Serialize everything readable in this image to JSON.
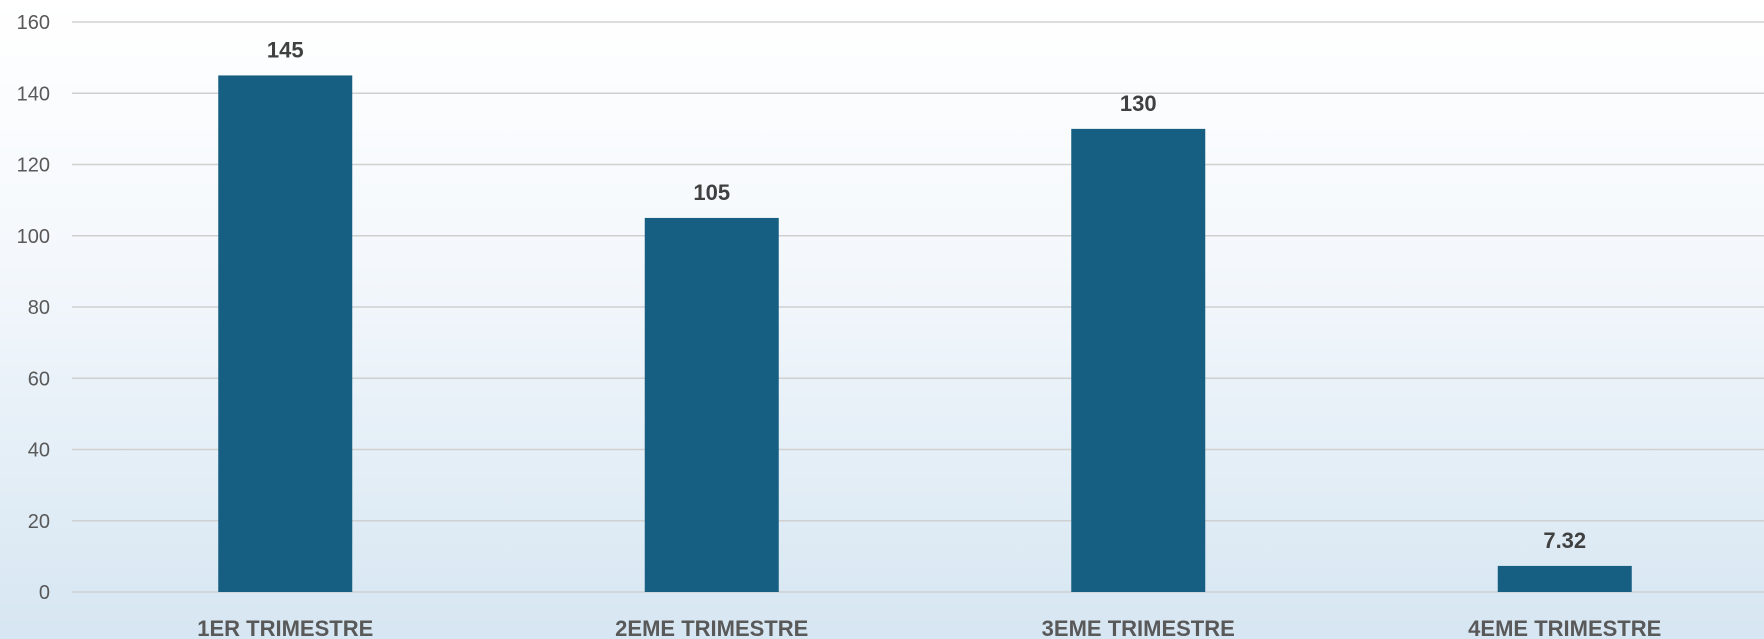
{
  "chart_data": {
    "type": "bar",
    "categories": [
      "1ER TRIMESTRE",
      "2EME TRIMESTRE",
      "3EME TRIMESTRE",
      "4EME TRIMESTRE"
    ],
    "values": [
      145,
      105,
      130,
      7.32
    ],
    "value_labels": [
      "145",
      "105",
      "130",
      "7.32"
    ],
    "ylim": [
      0,
      160
    ],
    "yticks": [
      0,
      20,
      40,
      60,
      80,
      100,
      120,
      140,
      160
    ],
    "grid": true,
    "legend": "none",
    "colors": {
      "bar": "#165f82",
      "grid": "#d0d0d0",
      "tick_text": "#595959",
      "label_text": "#404040"
    }
  }
}
